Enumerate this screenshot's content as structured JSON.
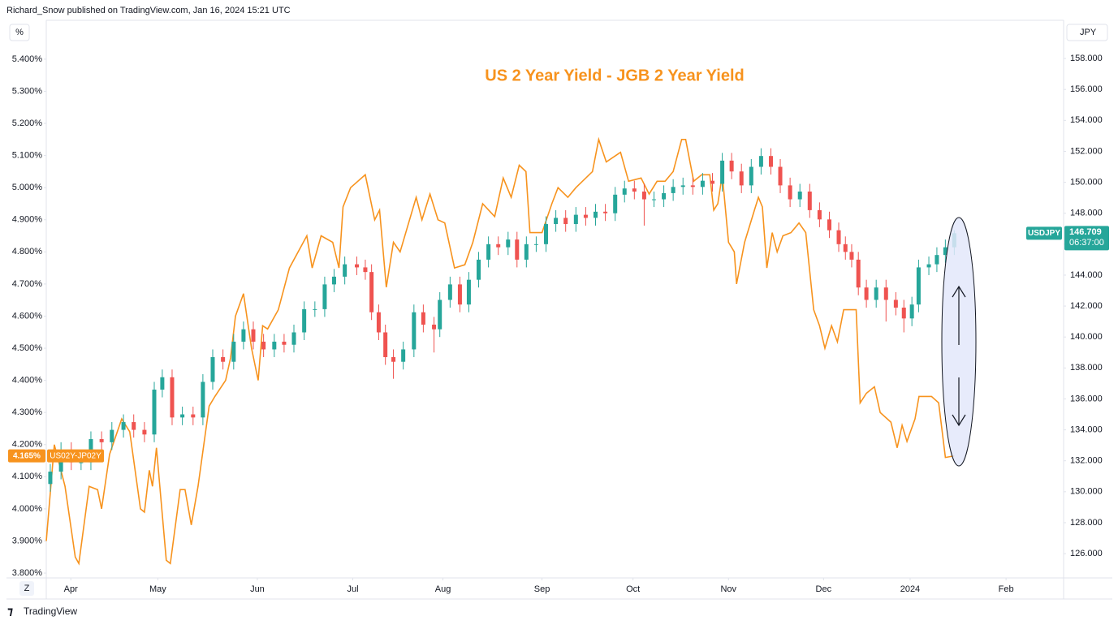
{
  "chart_data": {
    "type": "combo",
    "attribution": "Richard_Snow published on TradingView.com, Jan 16, 2024 15:21 UTC",
    "title": "US 2 Year Yield - JGB 2 Year Yield",
    "y_label": "%",
    "y2_label": "JPY",
    "grid": false,
    "xlim": [
      0,
      228
    ],
    "xticks": [
      {
        "value": 5.5,
        "label": "Apr"
      },
      {
        "value": 25.0,
        "label": "May"
      },
      {
        "value": 47.3,
        "label": "Jun"
      },
      {
        "value": 68.7,
        "label": "Jul"
      },
      {
        "value": 88.9,
        "label": "Aug"
      },
      {
        "value": 111.1,
        "label": "Sep"
      },
      {
        "value": 131.5,
        "label": "Oct"
      },
      {
        "value": 152.9,
        "label": "Nov"
      },
      {
        "value": 174.2,
        "label": "Dec"
      },
      {
        "value": 193.6,
        "label": "2024"
      },
      {
        "value": 215.1,
        "label": "Feb"
      }
    ],
    "ylim": [
      3.785,
      5.521
    ],
    "yticks": [
      {
        "value": 3.8,
        "label": "3.800%"
      },
      {
        "value": 3.9,
        "label": "3.900%"
      },
      {
        "value": 4.0,
        "label": "4.000%"
      },
      {
        "value": 4.1,
        "label": "4.100%"
      },
      {
        "value": 4.2,
        "label": "4.200%"
      },
      {
        "value": 4.3,
        "label": "4.300%"
      },
      {
        "value": 4.4,
        "label": "4.400%"
      },
      {
        "value": 4.5,
        "label": "4.500%"
      },
      {
        "value": 4.6,
        "label": "4.600%"
      },
      {
        "value": 4.7,
        "label": "4.700%"
      },
      {
        "value": 4.8,
        "label": "4.800%"
      },
      {
        "value": 4.9,
        "label": "4.900%"
      },
      {
        "value": 5.0,
        "label": "5.000%"
      },
      {
        "value": 5.1,
        "label": "5.100%"
      },
      {
        "value": 5.2,
        "label": "5.200%"
      },
      {
        "value": 5.3,
        "label": "5.300%"
      },
      {
        "value": 5.4,
        "label": "5.400%"
      }
    ],
    "y2lim": [
      124.43,
      160.47
    ],
    "y2ticks": [
      {
        "value": 126,
        "label": "126.000"
      },
      {
        "value": 128,
        "label": "128.000"
      },
      {
        "value": 130,
        "label": "130.000"
      },
      {
        "value": 132,
        "label": "132.000"
      },
      {
        "value": 134,
        "label": "134.000"
      },
      {
        "value": 136,
        "label": "136.000"
      },
      {
        "value": 138,
        "label": "138.000"
      },
      {
        "value": 140,
        "label": "140.000"
      },
      {
        "value": 142,
        "label": "142.000"
      },
      {
        "value": 144,
        "label": "144.000"
      },
      {
        "value": 146,
        "label": "146.000"
      },
      {
        "value": 148,
        "label": "148.000"
      },
      {
        "value": 150,
        "label": "150.000"
      },
      {
        "value": 152,
        "label": "152.000"
      },
      {
        "value": 154,
        "label": "154.000"
      },
      {
        "value": 156,
        "label": "156.000"
      },
      {
        "value": 158,
        "label": "158.000"
      }
    ],
    "series": [
      {
        "name": "US02Y-JP02Y",
        "type": "line",
        "color": "#f7931e",
        "last_value_label": "4.165%",
        "x": [
          0,
          1.8,
          4.2,
          6.5,
          7.3,
          9.6,
          11.5,
          12.4,
          14.2,
          16.9,
          18.7,
          21.1,
          22.0,
          23.1,
          23.8,
          24.7,
          26.9,
          27.8,
          30.0,
          31.1,
          32.5,
          34.0,
          36.5,
          37.8,
          40.2,
          41.3,
          42.4,
          44.2,
          46.0,
          47.5,
          48.5,
          49.6,
          52.0,
          54.5,
          58.4,
          59.6,
          61.6,
          64.2,
          65.6,
          66.5,
          68.2,
          71.5,
          73.6,
          74.7,
          76.2,
          77.8,
          79.3,
          82.9,
          84.2,
          86.0,
          87.8,
          89.3,
          91.5,
          93.8,
          95.6,
          97.8,
          100.5,
          102.4,
          104.2,
          106.0,
          107.5,
          108.4,
          111.1,
          113.3,
          114.7,
          116.9,
          118.7,
          122.4,
          123.8,
          125.5,
          128.7,
          130.5,
          133.3,
          135.1,
          136.9,
          138.7,
          140.5,
          142.4,
          143.3,
          145.1,
          146.9,
          148.7,
          149.6,
          150.5,
          151.5,
          152.9,
          154.2,
          154.7,
          156.5,
          158.7,
          159.6,
          160.5,
          161.5,
          162.7,
          163.8,
          165.1,
          166.9,
          168.7,
          170.2,
          172.0,
          173.3,
          174.5,
          176.0,
          177.3,
          178.7,
          180.2,
          181.5,
          182.4,
          183.8,
          185.6,
          186.9,
          189.3,
          190.7,
          191.8,
          192.9,
          194.7,
          195.6,
          198.4,
          200.0,
          201.5,
          203.5
        ],
        "values": [
          3.9,
          4.2,
          4.07,
          3.85,
          3.83,
          4.07,
          4.06,
          4.0,
          4.17,
          4.28,
          4.24,
          4.0,
          3.99,
          4.12,
          4.07,
          4.19,
          3.84,
          3.83,
          4.06,
          4.06,
          3.95,
          4.07,
          4.32,
          4.35,
          4.4,
          4.47,
          4.6,
          4.67,
          4.5,
          4.4,
          4.57,
          4.56,
          4.62,
          4.75,
          4.85,
          4.75,
          4.85,
          4.83,
          4.75,
          4.94,
          5.0,
          5.04,
          4.9,
          4.93,
          4.69,
          4.83,
          4.8,
          4.97,
          4.9,
          4.98,
          4.9,
          4.89,
          4.75,
          4.76,
          4.83,
          4.95,
          4.91,
          5.03,
          4.97,
          5.07,
          5.05,
          4.86,
          4.86,
          4.95,
          5.0,
          4.97,
          5.0,
          5.05,
          5.15,
          5.08,
          5.11,
          5.02,
          5.03,
          4.98,
          5.02,
          5.02,
          5.05,
          5.15,
          5.15,
          5.02,
          5.04,
          5.04,
          4.93,
          4.95,
          5.04,
          4.83,
          4.8,
          4.7,
          4.83,
          4.93,
          4.97,
          4.94,
          4.75,
          4.86,
          4.8,
          4.85,
          4.86,
          4.89,
          4.86,
          4.62,
          4.57,
          4.5,
          4.57,
          4.52,
          4.62,
          4.62,
          4.62,
          4.33,
          4.36,
          4.38,
          4.3,
          4.27,
          4.19,
          4.26,
          4.21,
          4.28,
          4.35,
          4.35,
          4.33,
          4.16,
          4.165
        ]
      },
      {
        "name": "USDJPY",
        "type": "candlestick",
        "axis": "y2",
        "up_color": "#26a69a",
        "down_color": "#ef5350",
        "countdown": "06:37:00",
        "x": [
          0.9,
          3.3,
          5.6,
          7.8,
          10.0,
          12.4,
          14.7,
          17.3,
          19.6,
          22.0,
          24.2,
          26.0,
          28.2,
          30.5,
          32.9,
          35.1,
          37.3,
          39.6,
          42.0,
          44.2,
          46.4,
          48.7,
          51.1,
          53.3,
          55.5,
          57.8,
          60.2,
          62.4,
          64.5,
          66.9,
          69.6,
          71.5,
          72.9,
          74.5,
          76.0,
          77.8,
          80.0,
          82.4,
          84.5,
          86.9,
          88.2,
          90.5,
          92.7,
          94.7,
          96.9,
          99.1,
          101.3,
          103.5,
          105.5,
          107.6,
          109.8,
          112.0,
          114.2,
          116.4,
          118.7,
          120.9,
          123.1,
          125.3,
          127.5,
          129.6,
          131.8,
          134.0,
          136.2,
          138.4,
          140.5,
          142.7,
          144.9,
          147.1,
          149.3,
          151.5,
          153.6,
          155.8,
          158.0,
          160.2,
          162.4,
          164.5,
          166.7,
          168.9,
          171.1,
          173.3,
          175.5,
          177.6,
          179.1,
          180.5,
          182.0,
          183.8,
          186.0,
          188.2,
          190.4,
          192.2,
          194.0,
          195.5,
          197.8,
          199.6,
          201.5,
          203.5
        ],
        "open": [
          130.5,
          131.3,
          132.7,
          131.9,
          131.9,
          133.4,
          133.2,
          134.0,
          134.5,
          134.0,
          133.7,
          136.6,
          137.4,
          134.8,
          135.0,
          134.8,
          137.1,
          138.7,
          138.4,
          139.7,
          140.5,
          139.7,
          139.2,
          139.7,
          139.5,
          140.3,
          141.8,
          141.8,
          143.4,
          143.9,
          144.7,
          144.5,
          144.2,
          141.6,
          140.3,
          138.7,
          138.4,
          139.2,
          141.6,
          140.8,
          140.5,
          142.4,
          143.4,
          142.1,
          143.7,
          145.0,
          146.0,
          145.8,
          146.3,
          145.0,
          146.0,
          146.0,
          147.3,
          147.7,
          147.3,
          147.9,
          147.7,
          148.1,
          148.0,
          149.2,
          149.6,
          149.4,
          148.9,
          148.9,
          149.3,
          149.7,
          149.8,
          149.7,
          150.1,
          149.9,
          151.4,
          150.7,
          149.8,
          151.0,
          151.7,
          151.0,
          149.8,
          148.9,
          149.4,
          148.2,
          147.6,
          146.9,
          146.0,
          145.5,
          145.0,
          143.2,
          142.4,
          143.2,
          142.4,
          141.9,
          141.2,
          142.1,
          144.5,
          144.7,
          145.3,
          145.8
        ],
        "high": [
          131.8,
          133.2,
          133.2,
          132.4,
          133.9,
          133.9,
          134.5,
          135.0,
          135.0,
          134.5,
          137.1,
          137.9,
          137.9,
          135.5,
          135.5,
          137.6,
          139.2,
          139.2,
          140.2,
          141.0,
          141.0,
          140.2,
          140.2,
          140.2,
          140.8,
          142.3,
          142.3,
          143.9,
          144.4,
          145.2,
          145.2,
          145.0,
          144.7,
          142.1,
          140.8,
          139.2,
          139.7,
          142.1,
          142.1,
          141.3,
          142.9,
          143.9,
          143.9,
          144.2,
          145.5,
          146.5,
          146.5,
          146.8,
          146.8,
          146.5,
          146.5,
          147.8,
          148.2,
          148.2,
          148.4,
          148.4,
          148.6,
          148.6,
          149.7,
          150.1,
          150.1,
          149.9,
          149.4,
          149.8,
          150.2,
          150.3,
          150.3,
          150.6,
          150.6,
          151.9,
          151.9,
          151.2,
          151.5,
          152.2,
          152.2,
          151.5,
          150.3,
          149.9,
          149.9,
          148.7,
          148.1,
          147.4,
          146.5,
          146.0,
          145.5,
          143.7,
          143.7,
          143.7,
          142.9,
          142.4,
          142.6,
          145.0,
          145.2,
          145.8,
          146.3,
          146.9
        ],
        "low": [
          130.0,
          130.8,
          131.4,
          131.4,
          131.4,
          132.7,
          132.7,
          133.5,
          133.5,
          133.2,
          133.2,
          136.1,
          134.3,
          134.3,
          134.3,
          134.3,
          136.6,
          137.9,
          137.9,
          139.2,
          139.2,
          138.7,
          138.7,
          139.0,
          139.0,
          139.8,
          141.3,
          141.3,
          142.9,
          143.4,
          144.0,
          143.7,
          141.1,
          139.8,
          138.2,
          137.3,
          137.9,
          138.7,
          140.3,
          139.0,
          140.0,
          141.9,
          141.6,
          141.6,
          143.2,
          144.5,
          145.3,
          145.3,
          144.5,
          144.5,
          145.5,
          145.5,
          146.8,
          146.8,
          146.8,
          147.2,
          147.2,
          147.5,
          147.5,
          148.7,
          148.9,
          147.2,
          148.4,
          148.4,
          148.8,
          149.2,
          149.2,
          149.2,
          149.4,
          149.4,
          150.2,
          149.3,
          149.3,
          150.5,
          150.5,
          149.3,
          148.4,
          148.4,
          147.7,
          147.1,
          146.4,
          145.5,
          145.0,
          144.5,
          142.7,
          141.9,
          141.9,
          141.0,
          141.4,
          140.3,
          140.7,
          141.6,
          144.0,
          144.2,
          144.8,
          145.3
        ],
        "close": [
          131.3,
          132.7,
          131.9,
          131.9,
          133.4,
          133.2,
          134.0,
          134.5,
          134.0,
          133.7,
          136.6,
          137.4,
          134.8,
          135.0,
          134.8,
          137.1,
          138.7,
          138.4,
          139.7,
          140.5,
          139.7,
          139.2,
          139.7,
          139.5,
          140.3,
          141.8,
          141.8,
          143.4,
          143.9,
          144.7,
          144.5,
          144.2,
          141.6,
          140.3,
          138.7,
          138.4,
          139.2,
          141.6,
          140.8,
          140.5,
          142.4,
          143.4,
          142.1,
          143.7,
          145.0,
          146.0,
          145.8,
          146.3,
          145.0,
          146.0,
          146.0,
          147.3,
          147.7,
          147.3,
          147.9,
          147.7,
          148.1,
          148.0,
          149.2,
          149.6,
          149.4,
          148.9,
          148.9,
          149.3,
          149.7,
          149.8,
          149.7,
          150.1,
          149.9,
          151.4,
          150.7,
          149.8,
          151.0,
          151.7,
          151.0,
          149.8,
          148.9,
          149.4,
          148.2,
          147.6,
          146.9,
          146.0,
          145.5,
          145.0,
          143.2,
          142.4,
          143.2,
          142.4,
          141.9,
          141.2,
          142.1,
          144.5,
          144.7,
          145.3,
          145.8,
          146.709
        ]
      }
    ],
    "footer": {
      "button": "Z",
      "logo": "TradingView"
    }
  }
}
